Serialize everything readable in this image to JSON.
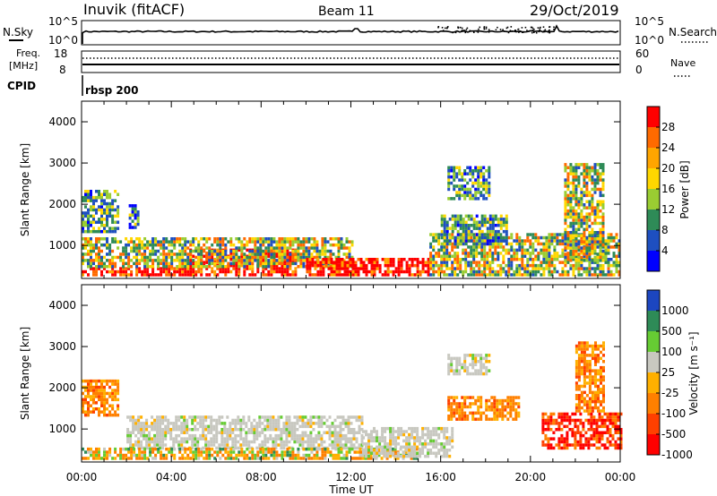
{
  "header": {
    "station": "Inuvik (fitACF)",
    "beam": "Beam 11",
    "date": "29/Oct/2019"
  },
  "top_panels": {
    "nsky_label": "N.Sky",
    "nsearch_label": "N.Search",
    "nsky_ticks": [
      "10^5",
      "10^0"
    ],
    "nsearch_ticks": [
      "10^5",
      "10^0"
    ],
    "freq_label_1": "Freq.",
    "freq_label_2": "[MHz]",
    "freq_ticks": [
      "18",
      "8"
    ],
    "nave_ticks": [
      "60",
      "0"
    ],
    "nave_label": "Nave",
    "cpid_label": "CPID",
    "cpid_value": "rbsp 200"
  },
  "chart_data": [
    {
      "type": "heatmap",
      "title": "",
      "ylabel": "Slant Range [km]",
      "xlabel": "",
      "x_ticks": [
        "00:00",
        "04:00",
        "08:00",
        "12:00",
        "16:00",
        "20:00",
        "00:00"
      ],
      "y_ticks": [
        "1000",
        "2000",
        "3000",
        "4000"
      ],
      "xlim": [
        0,
        24
      ],
      "ylim": [
        200,
        4500
      ],
      "colorbar": {
        "label": "Power [dB]",
        "ticks": [
          "28",
          "24",
          "20",
          "16",
          "12",
          "8",
          "4"
        ],
        "colors": [
          "#ff0000",
          "#ff6a00",
          "#ffa500",
          "#ffd700",
          "#9acd32",
          "#2e8b57",
          "#1e4fc0",
          "#0000ff"
        ]
      },
      "regions": [
        {
          "t0": 0.0,
          "t1": 5.0,
          "r0": 250,
          "r1": 450,
          "level": "high"
        },
        {
          "t0": 4.8,
          "t1": 9.5,
          "r0": 250,
          "r1": 900,
          "level": "high"
        },
        {
          "t0": 0.0,
          "t1": 12.0,
          "r0": 450,
          "r1": 1200,
          "level": "mid"
        },
        {
          "t0": 0.0,
          "t1": 1.6,
          "r0": 1300,
          "r1": 2300,
          "level": "low"
        },
        {
          "t0": 2.1,
          "t1": 2.5,
          "r0": 1400,
          "r1": 2000,
          "level": "low"
        },
        {
          "t0": 10.0,
          "t1": 15.5,
          "r0": 250,
          "r1": 700,
          "level": "high"
        },
        {
          "t0": 15.5,
          "t1": 24.0,
          "r0": 250,
          "r1": 1300,
          "level": "mid"
        },
        {
          "t0": 16.3,
          "t1": 18.2,
          "r0": 2100,
          "r1": 2900,
          "level": "low"
        },
        {
          "t0": 16.0,
          "t1": 19.0,
          "r0": 1000,
          "r1": 1700,
          "level": "low"
        },
        {
          "t0": 21.5,
          "t1": 23.2,
          "r0": 600,
          "r1": 3000,
          "level": "mid"
        }
      ]
    },
    {
      "type": "heatmap",
      "title": "",
      "ylabel": "Slant Range [km]",
      "xlabel": "Time UT",
      "x_ticks": [
        "00:00",
        "04:00",
        "08:00",
        "12:00",
        "16:00",
        "20:00",
        "00:00"
      ],
      "y_ticks": [
        "1000",
        "2000",
        "3000",
        "4000"
      ],
      "xlim": [
        0,
        24
      ],
      "ylim": [
        200,
        4500
      ],
      "colorbar": {
        "label": "Velocity [m s⁻¹]",
        "ticks": [
          "1000",
          "500",
          "100",
          "25",
          "-25",
          "-100",
          "-500",
          "-1000"
        ],
        "colors": [
          "#1c46c0",
          "#2e8b57",
          "#66cc33",
          "#c8c8c0",
          "#ffb000",
          "#ff8000",
          "#ff4000",
          "#ff0000"
        ]
      },
      "regions": [
        {
          "t0": 0.0,
          "t1": 1.6,
          "r0": 1300,
          "r1": 2200,
          "level": "neg"
        },
        {
          "t0": 2.0,
          "t1": 12.5,
          "r0": 500,
          "r1": 1300,
          "level": "zero"
        },
        {
          "t0": 0.0,
          "t1": 15.0,
          "r0": 250,
          "r1": 550,
          "level": "mix"
        },
        {
          "t0": 12.5,
          "t1": 16.5,
          "r0": 300,
          "r1": 1000,
          "level": "zero"
        },
        {
          "t0": 16.3,
          "t1": 18.2,
          "r0": 2300,
          "r1": 2800,
          "level": "zero"
        },
        {
          "t0": 16.3,
          "t1": 19.5,
          "r0": 1200,
          "r1": 1800,
          "level": "neg"
        },
        {
          "t0": 20.5,
          "t1": 24.0,
          "r0": 500,
          "r1": 1400,
          "level": "strongneg"
        },
        {
          "t0": 22.0,
          "t1": 23.3,
          "r0": 1400,
          "r1": 3100,
          "level": "neg"
        }
      ]
    }
  ]
}
